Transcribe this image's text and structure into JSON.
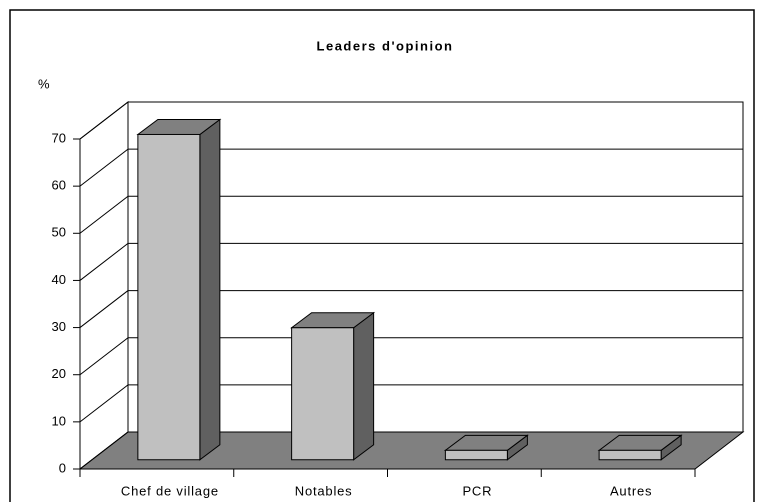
{
  "chart_data": {
    "type": "bar3d",
    "title": "Leaders d'opinion",
    "y_label": "%",
    "categories": [
      "Chef de village",
      "Notables",
      "PCR",
      "Autres"
    ],
    "values": [
      69,
      28,
      2,
      2
    ],
    "color": "#c0c0c0",
    "ylim": [
      0,
      70
    ],
    "yticks": [
      0,
      10,
      20,
      30,
      40,
      50,
      60,
      70
    ],
    "grid": true
  }
}
